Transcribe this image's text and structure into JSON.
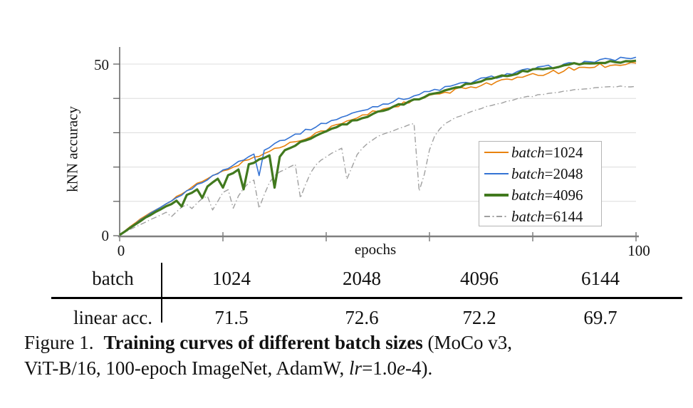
{
  "chart_data": {
    "type": "line",
    "title": "",
    "xlabel": "epochs",
    "ylabel": "kNN accuracy",
    "xlim": [
      0,
      100
    ],
    "ylim": [
      0,
      55
    ],
    "x_ticks": [
      0,
      20,
      40,
      60,
      80,
      100
    ],
    "x_tick_labels_shown": [
      "0",
      "100"
    ],
    "y_ticks": [
      0,
      10,
      20,
      30,
      40,
      50
    ],
    "y_tick_labels_shown": [
      "0",
      "50"
    ],
    "grid": "horizontal-only",
    "legend_position": "lower-right-inside",
    "x": [
      0,
      1,
      2,
      3,
      4,
      5,
      6,
      7,
      8,
      9,
      10,
      11,
      12,
      13,
      14,
      15,
      16,
      17,
      18,
      19,
      20,
      21,
      22,
      23,
      24,
      25,
      26,
      27,
      28,
      29,
      30,
      31,
      32,
      33,
      34,
      35,
      36,
      37,
      38,
      39,
      40,
      41,
      42,
      43,
      44,
      45,
      46,
      47,
      48,
      49,
      50,
      51,
      52,
      53,
      54,
      55,
      56,
      57,
      58,
      59,
      60,
      61,
      62,
      63,
      64,
      65,
      66,
      67,
      68,
      69,
      70,
      71,
      72,
      73,
      74,
      75,
      76,
      77,
      78,
      79,
      80,
      81,
      82,
      83,
      84,
      85,
      86,
      87,
      88,
      89,
      90,
      91,
      92,
      93,
      94,
      95,
      96,
      97,
      98,
      99,
      100
    ],
    "series": [
      {
        "name": "batch=1024",
        "color": "#e8820e",
        "style": "solid",
        "width": 1.6,
        "noise": 0.55,
        "values": [
          0.3,
          1.4,
          2.5,
          3.6,
          4.7,
          5.8,
          6.7,
          7.6,
          8.5,
          9.4,
          10.3,
          11.3,
          12.2,
          13.1,
          14.0,
          15.0,
          15.8,
          16.6,
          17.3,
          18.0,
          18.7,
          19.4,
          20.1,
          20.8,
          21.5,
          22.2,
          22.8,
          23.4,
          24.0,
          24.6,
          25.2,
          25.8,
          26.4,
          27.0,
          27.5,
          28.0,
          28.6,
          29.2,
          29.8,
          30.4,
          31.0,
          31.6,
          32.1,
          32.7,
          33.2,
          33.8,
          34.3,
          34.9,
          35.4,
          36.0,
          36.5,
          36.9,
          37.3,
          37.7,
          38.1,
          38.5,
          38.9,
          39.3,
          39.7,
          40.1,
          40.5,
          40.9,
          41.2,
          41.6,
          41.9,
          42.3,
          42.6,
          43.0,
          43.3,
          43.7,
          44.0,
          44.3,
          44.5,
          44.8,
          45.0,
          45.3,
          45.6,
          45.8,
          46.1,
          46.3,
          46.6,
          46.9,
          47.1,
          47.4,
          47.6,
          47.9,
          48.1,
          48.4,
          48.6,
          48.9,
          49.1,
          49.3,
          49.4,
          49.6,
          49.7,
          49.9,
          50.0,
          50.1,
          50.2,
          50.2,
          50.3
        ]
      },
      {
        "name": "batch=2048",
        "color": "#3473d4",
        "style": "solid",
        "width": 1.6,
        "noise": 0.45,
        "values": [
          0.3,
          1.3,
          2.4,
          3.4,
          4.5,
          5.5,
          6.4,
          7.3,
          8.2,
          9.1,
          10.0,
          11.0,
          11.9,
          12.9,
          13.8,
          14.8,
          15.6,
          16.5,
          17.3,
          18.2,
          19.0,
          19.8,
          20.6,
          21.4,
          22.2,
          23.0,
          23.8,
          17.5,
          24.9,
          26.0,
          27.0,
          27.6,
          28.2,
          28.8,
          29.4,
          30.0,
          30.6,
          31.2,
          31.8,
          32.4,
          33.0,
          33.5,
          34.0,
          34.5,
          35.0,
          35.5,
          36.0,
          36.5,
          37.0,
          37.5,
          38.0,
          38.4,
          38.8,
          39.2,
          39.6,
          40.0,
          40.4,
          40.8,
          41.2,
          41.6,
          42.0,
          42.4,
          42.7,
          43.1,
          43.4,
          43.8,
          44.1,
          44.5,
          44.8,
          45.2,
          45.5,
          45.8,
          46.1,
          46.4,
          46.7,
          47.0,
          47.3,
          47.6,
          47.9,
          48.2,
          48.5,
          48.7,
          48.9,
          49.1,
          49.3,
          49.5,
          49.7,
          49.9,
          50.1,
          50.3,
          50.5,
          50.7,
          50.8,
          51.0,
          51.1,
          51.3,
          51.4,
          51.6,
          51.7,
          51.9,
          52.0
        ]
      },
      {
        "name": "batch=4096",
        "color": "#41791e",
        "style": "solid",
        "width": 3.2,
        "noise": 0.3,
        "values": [
          0.2,
          1.2,
          2.2,
          3.2,
          4.2,
          5.2,
          6.0,
          6.9,
          7.7,
          8.5,
          9.3,
          10.1,
          8.5,
          11.8,
          12.6,
          13.5,
          11.0,
          14.5,
          15.5,
          16.6,
          14.0,
          17.5,
          18.3,
          19.3,
          13.5,
          20.8,
          21.4,
          22.1,
          22.7,
          23.4,
          14.0,
          23.0,
          24.9,
          25.5,
          26.2,
          27.3,
          27.9,
          28.5,
          29.2,
          29.8,
          30.5,
          31.1,
          31.6,
          32.2,
          32.7,
          33.3,
          33.8,
          34.4,
          34.9,
          35.5,
          36.0,
          36.5,
          37.0,
          37.5,
          38.0,
          38.5,
          39.0,
          39.5,
          40.0,
          40.5,
          41.0,
          41.4,
          41.9,
          42.3,
          42.8,
          43.2,
          43.6,
          44.0,
          44.4,
          44.8,
          45.2,
          45.5,
          45.9,
          46.2,
          46.5,
          46.8,
          47.1,
          47.4,
          47.7,
          48.0,
          48.2,
          48.5,
          48.7,
          48.9,
          49.1,
          49.3,
          49.5,
          49.7,
          49.9,
          50.0,
          50.2,
          50.3,
          50.4,
          50.5,
          50.6,
          50.7,
          50.8,
          50.8,
          50.9,
          51.0,
          51.0
        ]
      },
      {
        "name": "batch=6144",
        "color": "#a0a0a0",
        "style": "dashdot",
        "width": 1.4,
        "noise": 0.2,
        "values": [
          0.2,
          1.0,
          1.8,
          2.5,
          3.3,
          4.0,
          4.7,
          5.4,
          6.1,
          6.8,
          5.5,
          7.0,
          8.2,
          9.0,
          8.0,
          9.5,
          10.8,
          11.5,
          7.5,
          10.0,
          12.5,
          13.4,
          8.0,
          11.5,
          13.8,
          15.3,
          16.2,
          8.0,
          12.0,
          15.5,
          17.5,
          18.5,
          19.3,
          20.0,
          20.8,
          11.0,
          15.0,
          18.5,
          20.5,
          22.0,
          23.0,
          24.0,
          24.8,
          25.5,
          16.5,
          20.0,
          23.5,
          25.5,
          27.0,
          28.0,
          28.8,
          29.5,
          30.0,
          30.6,
          31.2,
          31.7,
          32.2,
          32.7,
          13.0,
          18.0,
          25.0,
          29.0,
          31.0,
          32.5,
          33.5,
          34.3,
          35.0,
          35.6,
          36.2,
          36.7,
          37.2,
          37.6,
          38.0,
          38.4,
          38.8,
          39.1,
          39.5,
          39.8,
          40.1,
          40.4,
          40.7,
          41.0,
          41.2,
          41.5,
          41.7,
          41.9,
          42.1,
          42.3,
          42.5,
          42.6,
          42.8,
          42.9,
          43.0,
          43.1,
          43.2,
          43.3,
          43.3,
          43.4,
          43.4,
          43.5,
          43.5
        ]
      }
    ]
  },
  "legend": {
    "entries": [
      {
        "math": "batch",
        "rest": "=1024"
      },
      {
        "math": "batch",
        "rest": "=2048"
      },
      {
        "math": "batch",
        "rest": "=4096"
      },
      {
        "math": "batch",
        "rest": "=6144"
      }
    ]
  },
  "table": {
    "row1_label": "batch",
    "row1_values": [
      "1024",
      "2048",
      "4096",
      "6144"
    ],
    "row2_label": "linear acc.",
    "row2_values": [
      "71.5",
      "72.6",
      "72.2",
      "69.7"
    ]
  },
  "caption": {
    "figure_label": "Figure 1.",
    "bold_text": "Training curves of different batch sizes",
    "after_bold": "(MoCo v3,",
    "line2_start": "ViT-B/16, 100-epoch ImageNet, AdamW, ",
    "lr": "lr",
    "equals": "=1.0",
    "e": "e",
    "end": "-4)."
  }
}
